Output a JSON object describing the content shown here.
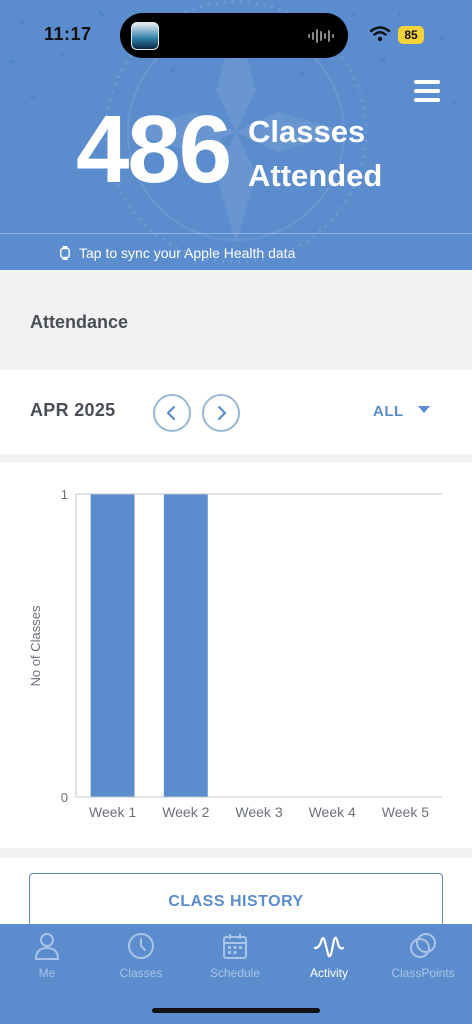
{
  "status": {
    "time": "11:17",
    "battery": "85"
  },
  "hero": {
    "count": "486",
    "label_line1": "Classes",
    "label_line2": "Attended",
    "sync_text": "Tap to sync your Apple Health data"
  },
  "attendance": {
    "title": "Attendance"
  },
  "period": {
    "month": "APR 2025",
    "filter": "ALL"
  },
  "chart_data": {
    "type": "bar",
    "categories": [
      "Week 1",
      "Week 2",
      "Week 3",
      "Week 4",
      "Week 5"
    ],
    "values": [
      1,
      1,
      0,
      0,
      0
    ],
    "title": "",
    "xlabel": "",
    "ylabel": "No of Classes",
    "ylim": [
      0,
      1
    ],
    "yticks": [
      "0",
      "1"
    ],
    "bar_color": "#5b8ccd",
    "grid": false
  },
  "history": {
    "button_label": "CLASS HISTORY"
  },
  "tabs": [
    {
      "label": "Me",
      "icon": "person-icon"
    },
    {
      "label": "Classes",
      "icon": "clock-icon"
    },
    {
      "label": "Schedule",
      "icon": "calendar-icon"
    },
    {
      "label": "Activity",
      "icon": "activity-wave-icon"
    },
    {
      "label": "ClassPoints",
      "icon": "points-icon"
    }
  ],
  "colors": {
    "accent": "#5b8ccd",
    "battery": "#f5d33b"
  }
}
